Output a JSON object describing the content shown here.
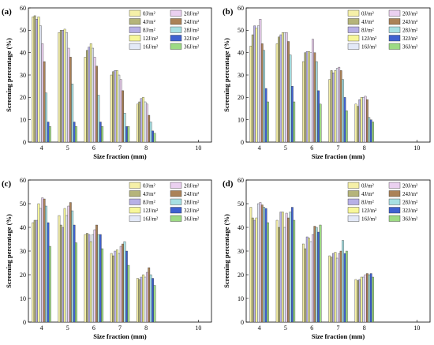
{
  "colors": {
    "0J/m2": "#f5f0a8",
    "4J/m2": "#b5b47a",
    "8J/m2": "#b7b0e6",
    "12J/m2": "#f7f79a",
    "16J/m2": "#e3e9f7",
    "20J/m2": "#ebd0f0",
    "24J/m2": "#ab8258",
    "28J/m2": "#a7e0e3",
    "32J/m2": "#3f61d0",
    "36J/m2": "#9dda84"
  },
  "chart_data": [
    {
      "panel": "(a)",
      "type": "bar",
      "xlabel": "Size fraction (mm)",
      "ylabel": "Screening percentage (%)",
      "xticks": [
        "4",
        "5",
        "6",
        "7",
        "8",
        "10"
      ],
      "ylim": [
        0,
        60
      ],
      "yticks": [
        "0",
        "10",
        "20",
        "30",
        "40",
        "50",
        "60"
      ],
      "legend": [
        "0J/m²",
        "20J/m²",
        "4J/m²",
        "24J/m²",
        "8J/m²",
        "28J/m²",
        "12J/m²",
        "32J/m²",
        "16J/m²",
        "36J/m²"
      ],
      "series": [
        {
          "name": "0J/m²",
          "values": [
            56.0,
            49.0,
            38.0,
            30.0,
            17.0
          ]
        },
        {
          "name": "4J/m²",
          "values": [
            56.5,
            50.0,
            41.0,
            31.5,
            18.0
          ]
        },
        {
          "name": "8J/m²",
          "values": [
            55.0,
            50.0,
            42.5,
            32.0,
            19.5
          ]
        },
        {
          "name": "12J/m²",
          "values": [
            56.0,
            50.5,
            44.0,
            32.0,
            20.0
          ]
        },
        {
          "name": "16J/m²",
          "values": [
            52.0,
            49.0,
            42.0,
            30.0,
            18.0
          ]
        },
        {
          "name": "20J/m²",
          "values": [
            44.0,
            42.0,
            38.0,
            28.0,
            17.0
          ]
        },
        {
          "name": "24J/m²",
          "values": [
            36.0,
            38.0,
            34.0,
            23.0,
            12.0
          ]
        },
        {
          "name": "28J/m²",
          "values": [
            22.0,
            26.0,
            21.0,
            13.0,
            9.0
          ]
        },
        {
          "name": "32J/m²",
          "values": [
            9.0,
            9.0,
            9.0,
            7.0,
            5.0
          ]
        },
        {
          "name": "36J/m²",
          "values": [
            7.0,
            7.0,
            7.0,
            7.0,
            4.0
          ]
        }
      ]
    },
    {
      "panel": "(b)",
      "type": "bar",
      "xlabel": "Size fraction (mm)",
      "ylabel": "Screening percentage (%)",
      "xticks": [
        "4",
        "5",
        "6",
        "7",
        "8",
        "10"
      ],
      "ylim": [
        0,
        60
      ],
      "yticks": [
        "0",
        "10",
        "20",
        "30",
        "40",
        "50",
        "60"
      ],
      "legend": [
        "0J/m²",
        "20J/m²",
        "4J/m²",
        "24J/m²",
        "8J/m²",
        "28J/m²",
        "12J/m²",
        "32J/m²",
        "16J/m²",
        "36J/m²"
      ],
      "series": [
        {
          "name": "0J/m²",
          "values": [
            43.0,
            44.0,
            36.0,
            28.0,
            17.0
          ]
        },
        {
          "name": "4J/m²",
          "values": [
            48.0,
            47.0,
            40.0,
            32.0,
            16.0
          ]
        },
        {
          "name": "8J/m²",
          "values": [
            52.0,
            48.0,
            40.5,
            31.0,
            19.0
          ]
        },
        {
          "name": "12J/m²",
          "values": [
            51.0,
            49.0,
            40.5,
            32.0,
            20.0
          ]
        },
        {
          "name": "16J/m²",
          "values": [
            52.0,
            49.0,
            40.0,
            33.0,
            20.0
          ]
        },
        {
          "name": "20J/m²",
          "values": [
            55.0,
            49.0,
            46.0,
            33.5,
            20.5
          ]
        },
        {
          "name": "24J/m²",
          "values": [
            44.0,
            45.0,
            40.0,
            32.0,
            19.0
          ]
        },
        {
          "name": "28J/m²",
          "values": [
            41.0,
            39.0,
            36.0,
            28.0,
            11.0
          ]
        },
        {
          "name": "32J/m²",
          "values": [
            24.0,
            25.0,
            23.0,
            20.0,
            10.0
          ]
        },
        {
          "name": "36J/m²",
          "values": [
            18.0,
            18.0,
            17.0,
            14.0,
            9.0
          ]
        }
      ]
    },
    {
      "panel": "(c)",
      "type": "bar",
      "xlabel": "Size fraction (mm)",
      "ylabel": "Screening percentage (%)",
      "xticks": [
        "4",
        "5",
        "6",
        "7",
        "8",
        "10"
      ],
      "ylim": [
        0,
        60
      ],
      "yticks": [
        "0",
        "10",
        "20",
        "30",
        "40",
        "50",
        "60"
      ],
      "legend": [
        "0J/m²",
        "20J/m²",
        "4J/m²",
        "24J/m²",
        "8J/m²",
        "28J/m²",
        "12J/m²",
        "32J/m²",
        "16J/m²",
        "36J/m²"
      ],
      "series": [
        {
          "name": "0J/m²",
          "values": [
            42.0,
            45.0,
            37.0,
            29.0,
            18.5
          ]
        },
        {
          "name": "4J/m²",
          "values": [
            43.0,
            41.0,
            37.5,
            28.0,
            18.0
          ]
        },
        {
          "name": "8J/m²",
          "values": [
            43.0,
            40.0,
            37.0,
            30.0,
            19.0
          ]
        },
        {
          "name": "12J/m²",
          "values": [
            50.0,
            48.0,
            34.0,
            30.5,
            20.0
          ]
        },
        {
          "name": "16J/m²",
          "values": [
            48.0,
            45.0,
            37.0,
            29.0,
            19.0
          ]
        },
        {
          "name": "20J/m²",
          "values": [
            52.5,
            49.0,
            39.0,
            32.0,
            21.0
          ]
        },
        {
          "name": "24J/m²",
          "values": [
            52.0,
            50.5,
            41.0,
            33.0,
            23.0
          ]
        },
        {
          "name": "28J/m²",
          "values": [
            49.0,
            47.0,
            37.0,
            34.0,
            20.0
          ]
        },
        {
          "name": "32J/m²",
          "values": [
            42.0,
            41.0,
            37.0,
            30.0,
            18.5
          ]
        },
        {
          "name": "36J/m²",
          "values": [
            32.0,
            33.5,
            31.0,
            24.0,
            15.5
          ]
        }
      ]
    },
    {
      "panel": "(d)",
      "type": "bar",
      "xlabel": "Size fraction (mm)",
      "ylabel": "Screening percentage (%)",
      "xticks": [
        "4",
        "5",
        "6",
        "7",
        "8",
        "10"
      ],
      "ylim": [
        0,
        60
      ],
      "yticks": [
        "0",
        "10",
        "20",
        "30",
        "40",
        "50",
        "60"
      ],
      "legend": [
        "0J/m²",
        "20J/m²",
        "4J/m²",
        "24J/m²",
        "8J/m²",
        "28J/m²",
        "12J/m²",
        "32J/m²",
        "16J/m²",
        "36J/m²"
      ],
      "series": [
        {
          "name": "0J/m²",
          "values": [
            48.5,
            43.0,
            33.0,
            28.0,
            18.0
          ]
        },
        {
          "name": "4J/m²",
          "values": [
            44.0,
            40.0,
            31.0,
            27.5,
            17.5
          ]
        },
        {
          "name": "8J/m²",
          "values": [
            43.0,
            46.5,
            36.0,
            29.0,
            18.0
          ]
        },
        {
          "name": "12J/m²",
          "values": [
            44.0,
            46.5,
            35.5,
            29.5,
            19.0
          ]
        },
        {
          "name": "16J/m²",
          "values": [
            50.0,
            40.0,
            34.0,
            27.0,
            19.0
          ]
        },
        {
          "name": "20J/m²",
          "values": [
            50.5,
            46.0,
            37.0,
            29.0,
            20.0
          ]
        },
        {
          "name": "24J/m²",
          "values": [
            49.5,
            44.0,
            40.5,
            30.0,
            20.5
          ]
        },
        {
          "name": "28J/m²",
          "values": [
            48.5,
            46.5,
            40.0,
            34.5,
            20.0
          ]
        },
        {
          "name": "32J/m²",
          "values": [
            48.0,
            48.5,
            38.0,
            29.0,
            20.5
          ]
        },
        {
          "name": "36J/m²",
          "values": [
            42.0,
            43.0,
            41.0,
            30.0,
            19.0
          ]
        }
      ]
    }
  ]
}
